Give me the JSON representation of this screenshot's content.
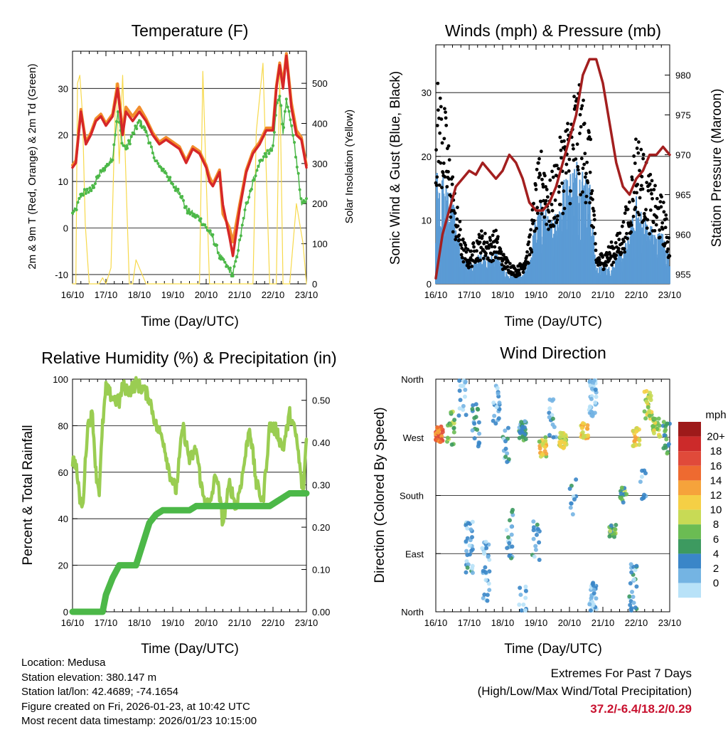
{
  "x_ticks": [
    "16/10",
    "17/10",
    "18/10",
    "19/10",
    "20/10",
    "21/10",
    "22/10",
    "23/10"
  ],
  "colors": {
    "temp_2m": "#d62728",
    "temp_9m": "#f28d2c",
    "dewpoint": "#4cb848",
    "solar": "#f7d94c",
    "wind": "#5b9bd5",
    "gust": "#000000",
    "pressure": "#a31f1f",
    "rh": "#9acd52",
    "precip": "#4cb848",
    "extremes": "#c8102e"
  },
  "chart_data": [
    {
      "id": "temperature",
      "type": "line",
      "title": "Temperature (F)",
      "xlabel": "Time (Day/UTC)",
      "ylabel": "2m & 9m T (Red, Orange) & 2m Td (Green)",
      "ylabel_right": "Solar Insolation (Yellow)",
      "ylim": [
        -12,
        38
      ],
      "yticks": [
        -10,
        0,
        10,
        20,
        30
      ],
      "ylim_right": [
        0,
        580
      ],
      "yticks_right": [
        0,
        100,
        200,
        300,
        400,
        500
      ],
      "x": [
        0,
        0.1,
        0.25,
        0.4,
        0.55,
        0.7,
        0.85,
        1.0,
        1.2,
        1.35,
        1.5,
        1.6,
        1.8,
        2.0,
        2.2,
        2.4,
        2.6,
        2.8,
        3.0,
        3.2,
        3.4,
        3.6,
        3.8,
        4.0,
        4.1,
        4.2,
        4.4,
        4.5,
        4.7,
        4.8,
        5.0,
        5.2,
        5.4,
        5.6,
        5.8,
        6.0,
        6.1,
        6.2,
        6.3,
        6.4,
        6.55,
        6.7,
        6.85,
        7.0
      ],
      "series": [
        {
          "name": "2m T",
          "values": [
            13,
            14,
            25,
            18,
            20,
            23,
            24,
            22,
            24,
            30,
            20,
            25,
            23,
            25,
            23,
            20,
            18,
            19,
            18,
            17,
            14,
            17,
            16,
            13,
            10,
            9,
            12,
            5,
            -2,
            -6,
            4,
            12,
            16,
            18,
            21,
            21,
            30,
            35,
            30,
            37,
            26,
            20,
            19,
            13
          ]
        },
        {
          "name": "9m T",
          "values": [
            13.5,
            14.5,
            25.5,
            18.5,
            20.5,
            23.5,
            24.5,
            22.5,
            24.5,
            31,
            21,
            26,
            24,
            26,
            23.5,
            20.5,
            18.5,
            19.5,
            18.5,
            17.5,
            14.5,
            17.5,
            16.5,
            13.5,
            11,
            9.5,
            12.5,
            3,
            0,
            -3,
            5,
            12.5,
            16.5,
            18.5,
            21.5,
            21.5,
            30.5,
            35.5,
            31,
            37.5,
            27,
            21,
            19.5,
            13.5
          ]
        },
        {
          "name": "2m Td",
          "values": [
            3,
            4,
            7,
            8,
            8,
            10,
            12,
            13,
            15,
            25,
            18,
            17,
            20,
            23,
            21,
            16,
            13,
            12,
            9,
            8,
            4,
            3,
            2,
            0,
            -1,
            -2,
            -6,
            -7,
            -9,
            -10,
            -3,
            5,
            10,
            14,
            16,
            17,
            26,
            29,
            21,
            27,
            22,
            15,
            5,
            6
          ]
        },
        {
          "name": "Solar",
          "x": [
            0,
            0.1,
            0.15,
            0.22,
            0.3,
            0.38,
            0.45,
            0.5,
            0.8,
            0.9,
            1.0,
            1.15,
            1.3,
            1.4,
            1.5,
            1.7,
            1.8,
            1.9,
            2.1,
            2.2,
            2.3,
            2.6,
            3.0,
            3.3,
            3.6,
            3.8,
            3.9,
            4.1,
            4.3,
            4.6,
            5.0,
            5.2,
            5.4,
            5.5,
            5.7,
            5.9,
            6.1,
            6.2,
            6.3,
            6.5,
            6.7,
            6.9,
            7.0
          ],
          "values": [
            0,
            0,
            500,
            520,
            420,
            150,
            60,
            0,
            0,
            15,
            0,
            40,
            500,
            300,
            520,
            0,
            0,
            60,
            20,
            0,
            0,
            0,
            0,
            0,
            0,
            0,
            530,
            0,
            0,
            0,
            0,
            0,
            0,
            380,
            550,
            0,
            0,
            530,
            0,
            0,
            200,
            100,
            0
          ]
        }
      ]
    },
    {
      "id": "winds",
      "type": "scatter",
      "title": "Winds (mph) & Pressure (mb)",
      "xlabel": "Time (Day/UTC)",
      "ylabel": "Sonic Wind & Gust (Blue, Black)",
      "ylabel_right": "Station Pressure (Maroon)",
      "ylim": [
        0,
        37.5
      ],
      "yticks": [
        0,
        10,
        20,
        30
      ],
      "ylim_right": [
        953.8,
        983.8
      ],
      "yticks_right": [
        955,
        960,
        965,
        970,
        975,
        980
      ],
      "x": [
        0,
        0.2,
        0.4,
        0.6,
        0.8,
        1.0,
        1.2,
        1.4,
        1.6,
        1.8,
        2.0,
        2.2,
        2.4,
        2.6,
        2.8,
        3.0,
        3.2,
        3.4,
        3.6,
        3.8,
        4.0,
        4.2,
        4.4,
        4.6,
        4.8,
        5.0,
        5.2,
        5.4,
        5.6,
        5.8,
        6.0,
        6.2,
        6.4,
        6.6,
        6.8,
        7.0
      ],
      "series": [
        {
          "name": "Sonic Wind",
          "values": [
            14,
            13,
            12,
            8,
            3,
            2,
            3,
            4,
            3,
            4,
            2,
            1,
            1,
            1,
            3,
            8,
            10,
            7,
            9,
            12,
            13,
            15,
            14,
            12,
            2,
            2,
            2,
            3,
            4,
            6,
            10,
            8,
            7,
            6,
            6,
            3
          ]
        },
        {
          "name": "Gust",
          "values": [
            26,
            25,
            18,
            11,
            6,
            4,
            6,
            7,
            6,
            7,
            4,
            3,
            2,
            3,
            6,
            14,
            18,
            13,
            16,
            20,
            22,
            26,
            24,
            21,
            4,
            4,
            5,
            6,
            8,
            12,
            20,
            17,
            14,
            12,
            11,
            6
          ]
        },
        {
          "name": "Station Pressure",
          "values": [
            954.5,
            960,
            963,
            966,
            967,
            968,
            967.5,
            969,
            968,
            967,
            968,
            970,
            969,
            967,
            964,
            963,
            963,
            964,
            966,
            969,
            972,
            975,
            980,
            982,
            982,
            979,
            974,
            969,
            966,
            965,
            967,
            968,
            970,
            970,
            971,
            970
          ]
        }
      ]
    },
    {
      "id": "humidity",
      "type": "line",
      "title": "Relative Humidity (%) & Precipitation (in)",
      "xlabel": "Time (Day/UTC)",
      "ylabel": "Percent & Total Rainfall",
      "ylim": [
        0,
        100
      ],
      "yticks": [
        0,
        20,
        40,
        60,
        80,
        100
      ],
      "ylim_right": [
        0,
        0.55
      ],
      "yticks_right": [
        "0.00",
        "0.10",
        "0.20",
        "0.30",
        "0.40",
        "0.50"
      ],
      "x": [
        0,
        0.1,
        0.2,
        0.3,
        0.45,
        0.6,
        0.7,
        0.8,
        0.9,
        1.0,
        1.2,
        1.4,
        1.5,
        1.7,
        1.9,
        2.1,
        2.3,
        2.5,
        2.7,
        2.9,
        3.1,
        3.3,
        3.5,
        3.7,
        3.9,
        4.1,
        4.3,
        4.5,
        4.7,
        4.9,
        5.1,
        5.3,
        5.5,
        5.7,
        5.9,
        6.1,
        6.3,
        6.5,
        6.7,
        6.9,
        7.0
      ],
      "series": [
        {
          "name": "RH",
          "values": [
            65,
            64,
            50,
            44,
            80,
            85,
            60,
            52,
            80,
            96,
            92,
            90,
            97,
            95,
            98,
            96,
            92,
            80,
            75,
            60,
            52,
            80,
            65,
            70,
            50,
            45,
            60,
            38,
            55,
            45,
            60,
            80,
            55,
            47,
            80,
            78,
            70,
            85,
            75,
            50,
            75
          ]
        },
        {
          "name": "Precip Total",
          "values": [
            0,
            0,
            0,
            0,
            0,
            0,
            0,
            0,
            0,
            0.04,
            0.08,
            0.11,
            0.11,
            0.11,
            0.11,
            0.16,
            0.21,
            0.23,
            0.24,
            0.24,
            0.24,
            0.24,
            0.24,
            0.25,
            0.25,
            0.25,
            0.25,
            0.25,
            0.25,
            0.25,
            0.25,
            0.25,
            0.25,
            0.25,
            0.25,
            0.26,
            0.27,
            0.28,
            0.28,
            0.28,
            0.28
          ]
        }
      ]
    },
    {
      "id": "direction",
      "type": "scatter",
      "title": "Wind Direction",
      "xlabel": "Time (Day/UTC)",
      "ylabel": "Direction (Colored By Speed)",
      "ylim": [
        0,
        360
      ],
      "yticks": [
        "North",
        "East",
        "South",
        "West",
        "North"
      ],
      "legend": {
        "title": "mph",
        "labels": [
          "20+",
          "18",
          "16",
          "14",
          "12",
          "10",
          "8",
          "6",
          "4",
          "2",
          "0"
        ],
        "colors": [
          "#9e1a1a",
          "#cc2a2a",
          "#e04a3a",
          "#ee6a30",
          "#f6a33b",
          "#f5cf45",
          "#c8da55",
          "#6bbc53",
          "#3d9a60",
          "#3a86c8",
          "#74b4e3",
          "#b8e2f8"
        ]
      },
      "clusters": [
        {
          "t": 0.1,
          "dir": 275,
          "spread": 12,
          "speed": 16,
          "n": 35
        },
        {
          "t": 0.45,
          "dir": 280,
          "spread": 30,
          "speed": 8,
          "n": 18
        },
        {
          "t": 0.8,
          "dir": 330,
          "spread": 30,
          "speed": 2,
          "n": 16
        },
        {
          "t": 1.2,
          "dir": 290,
          "spread": 40,
          "speed": 4,
          "n": 20
        },
        {
          "t": 1.0,
          "dir": 100,
          "spread": 40,
          "speed": 3,
          "n": 30
        },
        {
          "t": 1.5,
          "dir": 60,
          "spread": 50,
          "speed": 2,
          "n": 30
        },
        {
          "t": 1.8,
          "dir": 320,
          "spread": 30,
          "speed": 2,
          "n": 18
        },
        {
          "t": 2.1,
          "dir": 260,
          "spread": 30,
          "speed": 3,
          "n": 14
        },
        {
          "t": 2.2,
          "dir": 120,
          "spread": 40,
          "speed": 3,
          "n": 20
        },
        {
          "t": 2.6,
          "dir": 280,
          "spread": 15,
          "speed": 5,
          "n": 30
        },
        {
          "t": 2.6,
          "dir": 20,
          "spread": 20,
          "speed": 2,
          "n": 12
        },
        {
          "t": 3.2,
          "dir": 255,
          "spread": 15,
          "speed": 11,
          "n": 25
        },
        {
          "t": 3.0,
          "dir": 120,
          "spread": 40,
          "speed": 3,
          "n": 16
        },
        {
          "t": 3.5,
          "dir": 300,
          "spread": 30,
          "speed": 3,
          "n": 14
        },
        {
          "t": 3.8,
          "dir": 265,
          "spread": 12,
          "speed": 10,
          "n": 35
        },
        {
          "t": 4.1,
          "dir": 180,
          "spread": 30,
          "speed": 3,
          "n": 10
        },
        {
          "t": 4.45,
          "dir": 280,
          "spread": 12,
          "speed": 12,
          "n": 28
        },
        {
          "t": 4.7,
          "dir": 330,
          "spread": 30,
          "speed": 2,
          "n": 40
        },
        {
          "t": 4.7,
          "dir": 20,
          "spread": 25,
          "speed": 2,
          "n": 30
        },
        {
          "t": 5.3,
          "dir": 125,
          "spread": 10,
          "speed": 7,
          "n": 20
        },
        {
          "t": 5.6,
          "dir": 180,
          "spread": 12,
          "speed": 7,
          "n": 18
        },
        {
          "t": 5.9,
          "dir": 40,
          "spread": 40,
          "speed": 3,
          "n": 25
        },
        {
          "t": 6.0,
          "dir": 270,
          "spread": 15,
          "speed": 12,
          "n": 22
        },
        {
          "t": 6.35,
          "dir": 320,
          "spread": 25,
          "speed": 10,
          "n": 25
        },
        {
          "t": 6.6,
          "dir": 285,
          "spread": 15,
          "speed": 9,
          "n": 25
        },
        {
          "t": 6.9,
          "dir": 270,
          "spread": 25,
          "speed": 6,
          "n": 18
        },
        {
          "t": 6.2,
          "dir": 200,
          "spread": 30,
          "speed": 3,
          "n": 10
        }
      ]
    }
  ],
  "info": {
    "location": "Location: Medusa",
    "elevation": "Station elevation: 380.147 m",
    "latlon": "Station lat/lon: 42.4689; -74.1654",
    "created": "Figure created on Fri, 2026-01-23, at 10:42 UTC",
    "recent": "Most recent data timestamp: 2026/01/23 10:15:00"
  },
  "extremes": {
    "title": "Extremes For Past 7 Days",
    "subtitle": "(High/Low/Max Wind/Total Precipitation)",
    "value": "37.2/-6.4/18.2/0.29"
  }
}
